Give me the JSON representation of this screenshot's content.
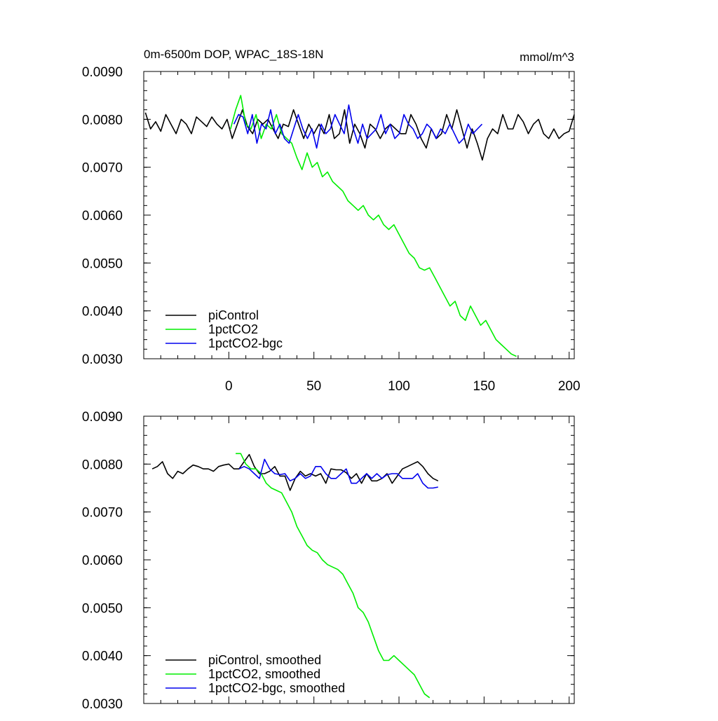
{
  "chart_data": [
    {
      "type": "line",
      "title": "0m-6500m DOP, WPAC_18S-18N",
      "units": "mmol/m^3",
      "xlabel": "",
      "ylabel": "",
      "xlim": [
        -50,
        203
      ],
      "ylim": [
        0.003,
        0.009
      ],
      "x_ticks": [
        "0",
        "50",
        "100",
        "150",
        "200"
      ],
      "y_ticks": [
        "0.0030",
        "0.0040",
        "0.0050",
        "0.0060",
        "0.0070",
        "0.0080",
        "0.0090"
      ],
      "grid": false,
      "legend_position": "bottom-left",
      "series": [
        {
          "name": "piControl",
          "color": "#000000",
          "x_start": -49,
          "x_step": 3,
          "values": [
            0.00814,
            0.0078,
            0.00795,
            0.00775,
            0.0081,
            0.0079,
            0.0077,
            0.008,
            0.0079,
            0.0077,
            0.00805,
            0.00795,
            0.00785,
            0.00805,
            0.0079,
            0.0078,
            0.008,
            0.0076,
            0.0079,
            0.0082,
            0.00785,
            0.0077,
            0.008,
            0.0079,
            0.008,
            0.0078,
            0.0076,
            0.0079,
            0.00785,
            0.0082,
            0.0079,
            0.0076,
            0.0079,
            0.0077,
            0.0079,
            0.0077,
            0.0081,
            0.0076,
            0.0077,
            0.0082,
            0.0075,
            0.0079,
            0.0077,
            0.0074,
            0.0079,
            0.0078,
            0.0076,
            0.0078,
            0.0079,
            0.0078,
            0.0077,
            0.0077,
            0.0081,
            0.0079,
            0.0076,
            0.0074,
            0.0078,
            0.0076,
            0.0077,
            0.0081,
            0.0078,
            0.0082,
            0.0078,
            0.0074,
            0.0078,
            0.0075,
            0.00715,
            0.0076,
            0.0078,
            0.0077,
            0.0081,
            0.0078,
            0.0078,
            0.0081,
            0.00795,
            0.0077,
            0.0079,
            0.008,
            0.0077,
            0.0076,
            0.0078,
            0.0076,
            0.0077,
            0.00775,
            0.0081
          ]
        },
        {
          "name": "1pctCO2",
          "color": "#00ee00",
          "x_start": 1,
          "x_step": 3,
          "values": [
            0.0078,
            0.0082,
            0.0085,
            0.0079,
            0.0078,
            0.0081,
            0.0076,
            0.0079,
            0.0078,
            0.0081,
            0.0077,
            0.0076,
            0.0075,
            0.0072,
            0.00695,
            0.0073,
            0.007,
            0.0071,
            0.0068,
            0.0069,
            0.0067,
            0.0066,
            0.0065,
            0.0063,
            0.0062,
            0.0061,
            0.0062,
            0.006,
            0.0059,
            0.006,
            0.0058,
            0.0057,
            0.0058,
            0.0056,
            0.0054,
            0.0052,
            0.0051,
            0.0049,
            0.00485,
            0.0049,
            0.0047,
            0.0045,
            0.0043,
            0.0041,
            0.0042,
            0.0039,
            0.0038,
            0.0041,
            0.0039,
            0.0037,
            0.0038,
            0.0036,
            0.0034,
            0.0033,
            0.0032,
            0.0031,
            0.00305
          ]
        },
        {
          "name": "1pctCO2-bgc",
          "color": "#0000ee",
          "x_start": 3,
          "x_step": 2.7,
          "values": [
            0.0079,
            0.0081,
            0.00805,
            0.0077,
            0.0081,
            0.0075,
            0.0079,
            0.0078,
            0.0082,
            0.0077,
            0.0079,
            0.0076,
            0.0075,
            0.0078,
            0.0081,
            0.0078,
            0.0076,
            0.0078,
            0.0074,
            0.0079,
            0.0077,
            0.0078,
            0.0081,
            0.0079,
            0.0077,
            0.0083,
            0.0078,
            0.0075,
            0.0079,
            0.0076,
            0.0077,
            0.0078,
            0.0081,
            0.0077,
            0.0079,
            0.0076,
            0.0077,
            0.0081,
            0.0079,
            0.0078,
            0.0076,
            0.0077,
            0.0079,
            0.0078,
            0.0076,
            0.0078,
            0.0077,
            0.0079,
            0.0077,
            0.0075,
            0.0076,
            0.0079,
            0.0077,
            0.0078,
            0.0079
          ]
        }
      ]
    },
    {
      "type": "line",
      "title": "",
      "xlabel": "",
      "ylabel": "",
      "xlim": [
        -50,
        203
      ],
      "ylim": [
        0.003,
        0.009
      ],
      "y_ticks": [
        "0.0030",
        "0.0040",
        "0.0050",
        "0.0060",
        "0.0070",
        "0.0080",
        "0.0090"
      ],
      "grid": false,
      "legend_position": "bottom-left",
      "series": [
        {
          "name": "piControl, smoothed",
          "color": "#000000",
          "x_start": -45,
          "x_step": 3,
          "values": [
            0.0079,
            0.00795,
            0.00805,
            0.0078,
            0.0077,
            0.00785,
            0.0078,
            0.0079,
            0.00798,
            0.00795,
            0.0079,
            0.0079,
            0.00785,
            0.00795,
            0.00798,
            0.008,
            0.0079,
            0.0079,
            0.00805,
            0.0082,
            0.00795,
            0.0078,
            0.0078,
            0.00785,
            0.00795,
            0.00775,
            0.00775,
            0.00745,
            0.0077,
            0.00785,
            0.00775,
            0.0078,
            0.00775,
            0.0078,
            0.0076,
            0.0079,
            0.00788,
            0.00788,
            0.00782,
            0.0077,
            0.0078,
            0.0076,
            0.0078,
            0.00765,
            0.00765,
            0.0077,
            0.0078,
            0.0076,
            0.00775,
            0.0079,
            0.00795,
            0.008,
            0.00805,
            0.00795,
            0.0078,
            0.0077,
            0.00765
          ]
        },
        {
          "name": "1pctCO2, smoothed",
          "color": "#00ee00",
          "x_start": 4,
          "x_step": 3,
          "values": [
            0.00822,
            0.00822,
            0.008,
            0.0079,
            0.0079,
            0.0078,
            0.0076,
            0.0075,
            0.00745,
            0.0074,
            0.0072,
            0.007,
            0.0067,
            0.0065,
            0.0063,
            0.0062,
            0.00615,
            0.006,
            0.0059,
            0.00585,
            0.0058,
            0.0057,
            0.0055,
            0.0053,
            0.005,
            0.0049,
            0.0047,
            0.0044,
            0.0041,
            0.0039,
            0.0039,
            0.004,
            0.0039,
            0.0038,
            0.0037,
            0.0036,
            0.0034,
            0.0032,
            0.00312
          ]
        },
        {
          "name": "1pctCO2-bgc, smoothed",
          "color": "#0000ee",
          "x_start": 6,
          "x_step": 3,
          "values": [
            0.0079,
            0.00795,
            0.0079,
            0.0078,
            0.0077,
            0.0081,
            0.0079,
            0.0078,
            0.00778,
            0.0078,
            0.00765,
            0.0077,
            0.0078,
            0.0077,
            0.00775,
            0.00795,
            0.00795,
            0.0078,
            0.0077,
            0.0077,
            0.0078,
            0.0079,
            0.0076,
            0.0076,
            0.0077,
            0.0078,
            0.0077,
            0.0078,
            0.0077,
            0.00778,
            0.0078,
            0.0078,
            0.0077,
            0.0077,
            0.0077,
            0.0078,
            0.0076,
            0.0075,
            0.0075,
            0.00752
          ]
        }
      ]
    }
  ]
}
